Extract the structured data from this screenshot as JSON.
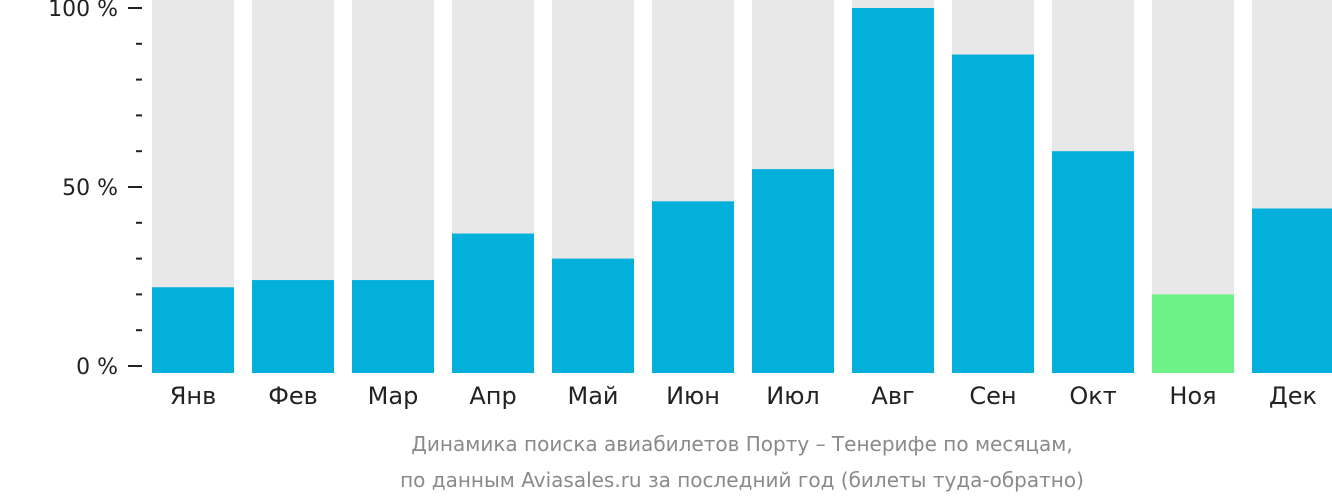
{
  "chart_data": {
    "type": "bar",
    "categories": [
      "Янв",
      "Фев",
      "Мар",
      "Апр",
      "Май",
      "Июн",
      "Июл",
      "Авг",
      "Сен",
      "Окт",
      "Ноя",
      "Дек"
    ],
    "values": [
      22,
      24,
      24,
      37,
      30,
      46,
      55,
      100,
      87,
      60,
      20,
      44
    ],
    "ylim": [
      0,
      100
    ],
    "y_ticks_major": [
      {
        "value": 100,
        "label": "100 %"
      },
      {
        "value": 50,
        "label": "50 %"
      },
      {
        "value": 0,
        "label": "0 %"
      }
    ],
    "y_ticks_minor": [
      10,
      20,
      30,
      40,
      60,
      70,
      80,
      90
    ],
    "caption_line1": "Динамика поиска авиабилетов Порту – Тенерифе по месяцам,",
    "caption_line2": "по данным Aviasales.ru за последний год (билеты туда-обратно)",
    "highlight_index": 10,
    "colors": {
      "bar": "#03b0dc",
      "bar_background": "#e8e8e8",
      "highlight": "#6cf286",
      "axis": "#222222",
      "caption": "#8a8a8a"
    }
  }
}
